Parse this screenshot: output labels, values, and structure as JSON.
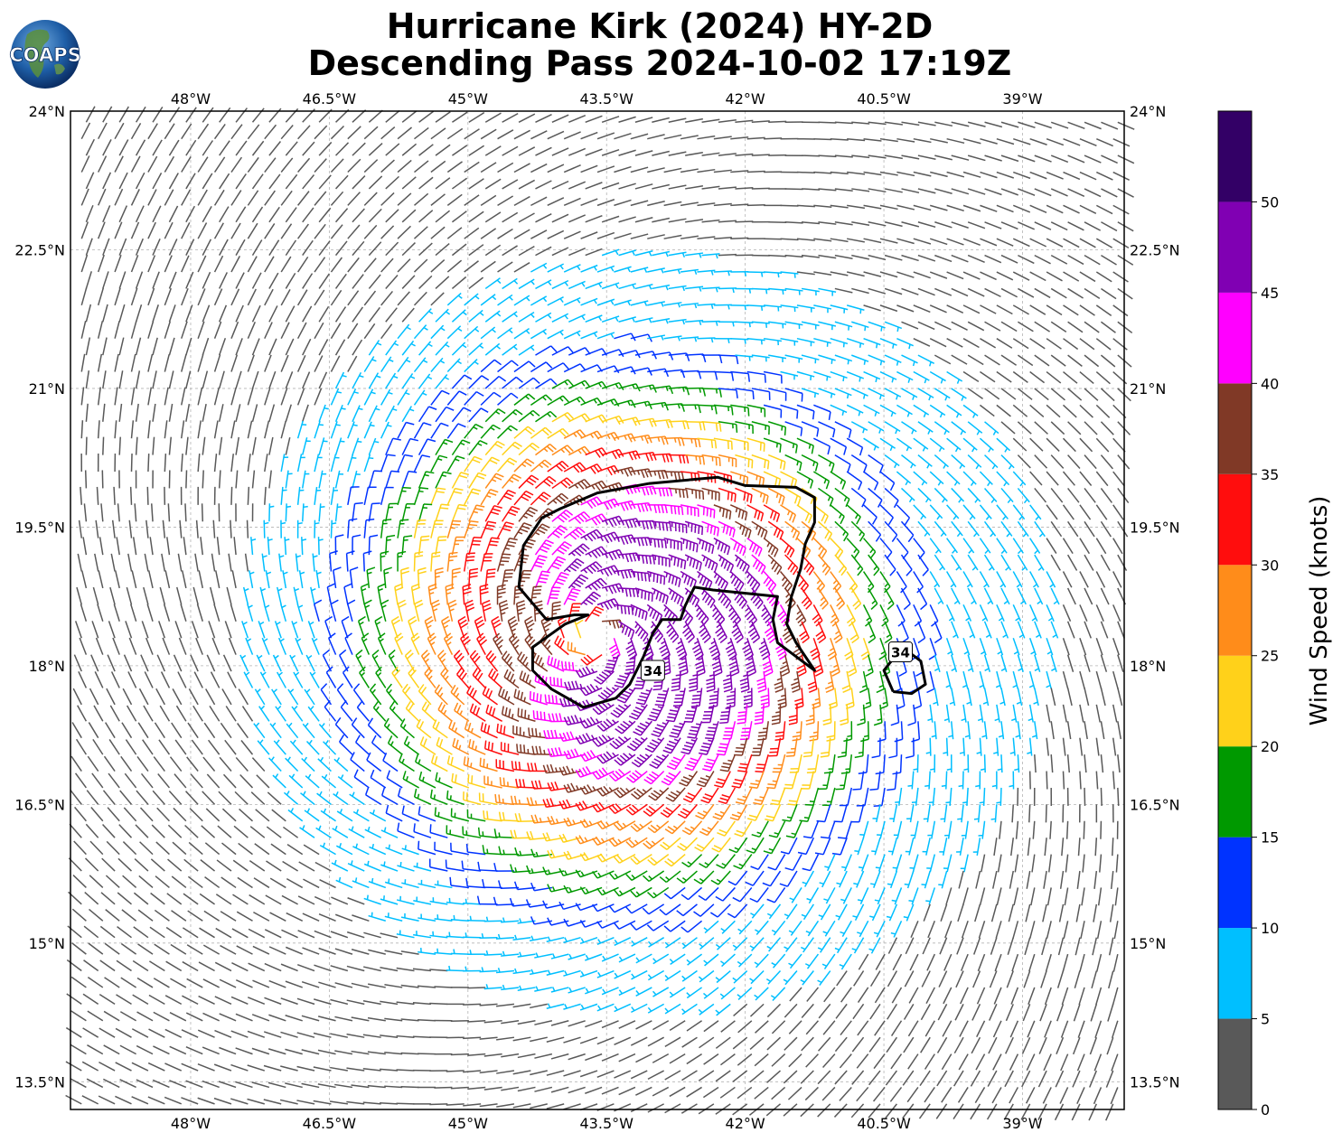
{
  "title": {
    "line1": "Hurricane Kirk (2024) HY-2D",
    "line2": "Descending Pass 2024-10-02 17:19Z"
  },
  "logo_text": "COAPS",
  "chart_data": {
    "type": "wind_barbs",
    "title": "Hurricane Kirk (2024) HY-2D Descending Pass 2024-10-02 17:19Z",
    "xlim": [
      -49.3,
      -37.9
    ],
    "ylim": [
      13.2,
      24.0
    ],
    "x_ticks": [
      -48,
      -46.5,
      -45,
      -43.5,
      -42,
      -40.5,
      -39
    ],
    "x_tick_labels": [
      "48°W",
      "46.5°W",
      "45°W",
      "43.5°W",
      "42°W",
      "40.5°W",
      "39°W"
    ],
    "y_ticks": [
      24,
      22.5,
      21,
      19.5,
      18,
      16.5,
      15,
      13.5
    ],
    "y_tick_labels": [
      "24°N",
      "22.5°N",
      "21°N",
      "19.5°N",
      "18°N",
      "16.5°N",
      "15°N",
      "13.5°N"
    ],
    "grid": true,
    "storm_center": {
      "lon": -43.6,
      "lat": 18.3
    },
    "colorbar": {
      "label": "Wind Speed (knots)",
      "bounds": [
        0,
        5,
        10,
        15,
        20,
        25,
        30,
        35,
        40,
        45,
        50,
        55
      ],
      "tick_labels": [
        "0",
        "5",
        "10",
        "15",
        "20",
        "25",
        "30",
        "35",
        "40",
        "45",
        "50"
      ],
      "colors": [
        "#595959",
        "#00bfff",
        "#0033ff",
        "#009900",
        "#ffd11a",
        "#ff8c1a",
        "#ff0d0d",
        "#803926",
        "#ff00ff",
        "#8000b3",
        "#330066"
      ]
    },
    "contours": [
      {
        "level": 34,
        "label": "34",
        "path": [
          [
            -43.05,
            19.97
          ],
          [
            -42.3,
            20.04
          ],
          [
            -42.0,
            19.95
          ],
          [
            -41.45,
            19.93
          ],
          [
            -41.25,
            19.82
          ],
          [
            -41.25,
            19.55
          ],
          [
            -41.35,
            19.32
          ],
          [
            -41.4,
            19.05
          ],
          [
            -41.5,
            18.75
          ],
          [
            -41.55,
            18.45
          ],
          [
            -41.45,
            18.25
          ],
          [
            -41.25,
            17.95
          ],
          [
            -41.45,
            18.1
          ],
          [
            -41.65,
            18.25
          ],
          [
            -41.7,
            18.5
          ],
          [
            -41.65,
            18.75
          ],
          [
            -41.95,
            18.78
          ],
          [
            -42.35,
            18.82
          ],
          [
            -42.55,
            18.85
          ],
          [
            -42.65,
            18.65
          ],
          [
            -42.7,
            18.5
          ],
          [
            -42.9,
            18.5
          ],
          [
            -43.0,
            18.35
          ],
          [
            -43.1,
            18.1
          ],
          [
            -43.25,
            17.8
          ],
          [
            -43.4,
            17.65
          ],
          [
            -43.75,
            17.55
          ],
          [
            -44.1,
            17.75
          ],
          [
            -44.3,
            17.95
          ],
          [
            -44.3,
            18.2
          ],
          [
            -43.95,
            18.45
          ],
          [
            -43.7,
            18.55
          ],
          [
            -43.85,
            18.55
          ],
          [
            -44.15,
            18.5
          ],
          [
            -44.45,
            18.85
          ],
          [
            -44.4,
            19.3
          ],
          [
            -44.2,
            19.6
          ],
          [
            -44.0,
            19.7
          ],
          [
            -43.6,
            19.87
          ],
          [
            -43.05,
            19.97
          ]
        ]
      },
      {
        "level": 34,
        "label": "34",
        "path": [
          [
            -40.4,
            17.72
          ],
          [
            -40.2,
            17.7
          ],
          [
            -40.05,
            17.8
          ],
          [
            -40.1,
            18.05
          ],
          [
            -40.3,
            18.2
          ],
          [
            -40.5,
            17.95
          ],
          [
            -40.4,
            17.72
          ]
        ]
      }
    ],
    "contour_label_positions": [
      {
        "lon": -43.0,
        "lat": 17.95,
        "text": "34"
      },
      {
        "lon": -40.32,
        "lat": 18.15,
        "text": "34"
      }
    ]
  }
}
